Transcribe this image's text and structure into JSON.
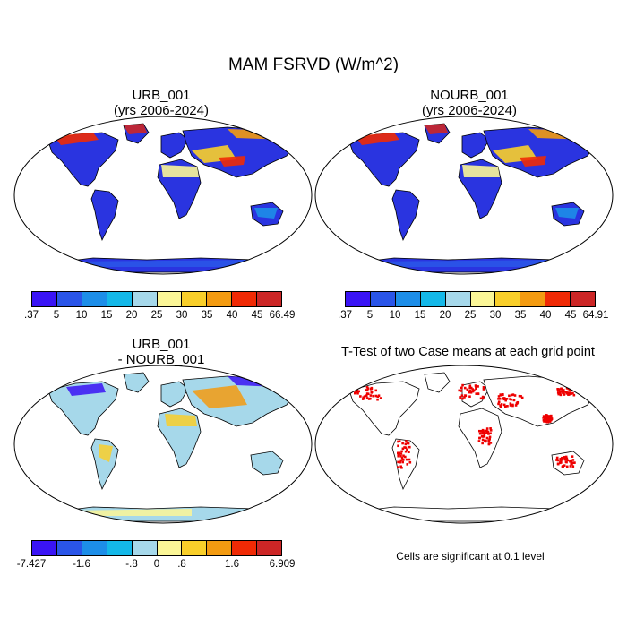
{
  "figure_title": "MAM FSRVD (W/m^2)",
  "panels": [
    {
      "id": "urb",
      "title_line1": "URB_001",
      "title_line2": "(yrs 2006-2024)",
      "palette": [
        "#3a14f5",
        "#2a55e8",
        "#1d8ee8",
        "#14b8e8",
        "#a6d8ea",
        "#fbf697",
        "#f9cf2a",
        "#f39b11",
        "#f02a05",
        "#cc2626"
      ],
      "ticks": [
        ".37",
        "5",
        "10",
        "15",
        "20",
        "25",
        "30",
        "35",
        "40",
        "45",
        "66.49"
      ],
      "land_fill": "#2a34e0"
    },
    {
      "id": "nourb",
      "title_line1": "NOURB_001",
      "title_line2": "(yrs 2006-2024)",
      "palette": [
        "#3a14f5",
        "#2a55e8",
        "#1d8ee8",
        "#14b8e8",
        "#a6d8ea",
        "#fbf697",
        "#f9cf2a",
        "#f39b11",
        "#f02a05",
        "#cc2626"
      ],
      "ticks": [
        ".37",
        "5",
        "10",
        "15",
        "20",
        "25",
        "30",
        "35",
        "40",
        "45",
        "64.91"
      ],
      "land_fill": "#2a34e0"
    },
    {
      "id": "diff",
      "title_line1": "URB_001",
      "title_line2": "- NOURB_001",
      "palette": [
        "#3a14f5",
        "#2a55e8",
        "#1d8ee8",
        "#14b8e8",
        "#a6d8ea",
        "#fbf697",
        "#f9cf2a",
        "#f39b11",
        "#f02a05",
        "#cc2626"
      ],
      "ticks": [
        "-7.427",
        "-1.6",
        "-.8",
        "0",
        ".8",
        "1.6",
        "6.909"
      ],
      "land_fill": "#a6d8ea"
    },
    {
      "id": "ttest",
      "title_line1": "T-Test of two Case means at each grid point",
      "land_fill": "#ffffff",
      "significance_color": "#ee0000",
      "note": "Cells are significant at 0.1 level"
    }
  ]
}
